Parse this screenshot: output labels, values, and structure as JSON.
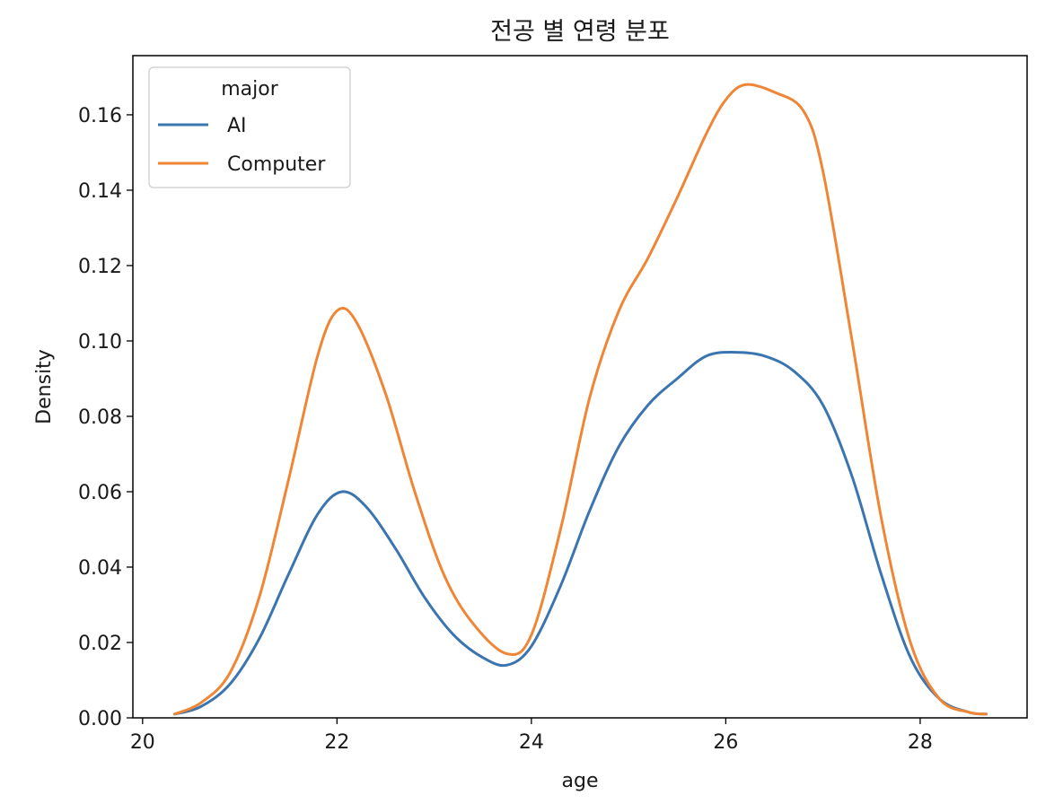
{
  "chart_data": {
    "type": "line",
    "subtype": "kde",
    "title": "전공 별 연령 분포",
    "xlabel": "age",
    "ylabel": "Density",
    "xlim": [
      19.9,
      29.1
    ],
    "ylim": [
      0,
      0.1757
    ],
    "xticks": [
      20,
      22,
      24,
      26,
      28
    ],
    "xtick_labels": [
      "20",
      "22",
      "24",
      "26",
      "28"
    ],
    "yticks": [
      0,
      0.02,
      0.04,
      0.06,
      0.08,
      0.1,
      0.12,
      0.14,
      0.16
    ],
    "ytick_labels": [
      "0.00",
      "0.02",
      "0.04",
      "0.06",
      "0.08",
      "0.10",
      "0.12",
      "0.14",
      "0.16"
    ],
    "grid": false,
    "legend": {
      "title": "major",
      "position": "top-left"
    },
    "series": [
      {
        "name": "AI",
        "color": "#3b75af",
        "x": [
          20.33,
          20.6,
          20.9,
          21.2,
          21.5,
          21.8,
          22.05,
          22.3,
          22.6,
          22.9,
          23.2,
          23.5,
          23.75,
          24.0,
          24.3,
          24.6,
          24.9,
          25.2,
          25.5,
          25.8,
          26.1,
          26.4,
          26.7,
          27.0,
          27.3,
          27.6,
          27.9,
          28.2,
          28.5,
          28.68
        ],
        "values": [
          0.001,
          0.003,
          0.009,
          0.021,
          0.038,
          0.054,
          0.06,
          0.056,
          0.045,
          0.032,
          0.022,
          0.016,
          0.014,
          0.019,
          0.035,
          0.055,
          0.072,
          0.083,
          0.09,
          0.096,
          0.097,
          0.096,
          0.092,
          0.083,
          0.064,
          0.038,
          0.016,
          0.005,
          0.0015,
          0.001
        ]
      },
      {
        "name": "Computer",
        "color": "#ef8636",
        "x": [
          20.33,
          20.6,
          20.9,
          21.2,
          21.5,
          21.8,
          22.0,
          22.2,
          22.5,
          22.8,
          23.1,
          23.4,
          23.75,
          24.0,
          24.3,
          24.6,
          24.9,
          25.2,
          25.5,
          25.8,
          26.0,
          26.2,
          26.5,
          26.8,
          27.0,
          27.3,
          27.6,
          27.9,
          28.2,
          28.5,
          28.68
        ],
        "values": [
          0.001,
          0.004,
          0.012,
          0.032,
          0.063,
          0.096,
          0.108,
          0.105,
          0.086,
          0.06,
          0.038,
          0.025,
          0.017,
          0.022,
          0.05,
          0.085,
          0.108,
          0.122,
          0.138,
          0.155,
          0.164,
          0.168,
          0.166,
          0.161,
          0.145,
          0.1,
          0.053,
          0.02,
          0.005,
          0.0015,
          0.001
        ]
      }
    ]
  }
}
